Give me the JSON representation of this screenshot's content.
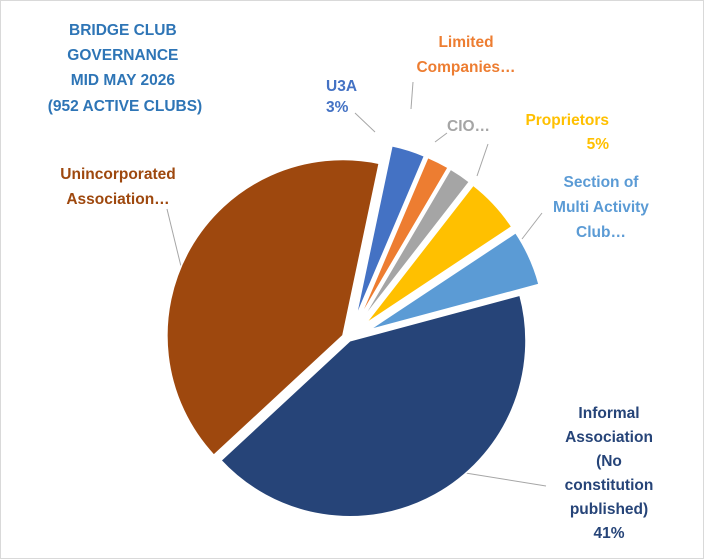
{
  "chart_data": {
    "type": "pie",
    "title_lines": [
      "BRIDGE  CLUB",
      "GOVERNANCE",
      "MID MAY 2026",
      "(952 ACTIVE CLUBS)"
    ],
    "title_color": "#2E75B6",
    "legend": "none",
    "slices": [
      {
        "category": "Informal Association (No constitution published)",
        "value": 41,
        "color": "#264478",
        "label_lines": [
          "Informal",
          "Association",
          "(No",
          "constitution",
          "published)",
          "41%"
        ]
      },
      {
        "category": "Unincorporated Association",
        "value": 39,
        "color": "#9E480E",
        "label_lines": [
          "Unincorporated",
          "Association…"
        ]
      },
      {
        "category": "U3A",
        "value": 3,
        "color": "#4472C4",
        "label_lines": [
          "U3A",
          "3%"
        ]
      },
      {
        "category": "Limited Companies",
        "value": 2,
        "color": "#ED7D31",
        "label_lines": [
          "Limited",
          "Companies…"
        ]
      },
      {
        "category": "CIO",
        "value": 2,
        "color": "#A5A5A5",
        "label_lines": [
          "CIO…"
        ]
      },
      {
        "category": "Proprietors",
        "value": 5,
        "color": "#FFC000",
        "label_lines": [
          "Proprietors",
          "5%"
        ]
      },
      {
        "category": "Section of Multi Activity Club",
        "value": 5,
        "color": "#5B9BD5",
        "label_lines": [
          "Section of",
          "Multi Activity",
          "Club…"
        ]
      }
    ]
  }
}
